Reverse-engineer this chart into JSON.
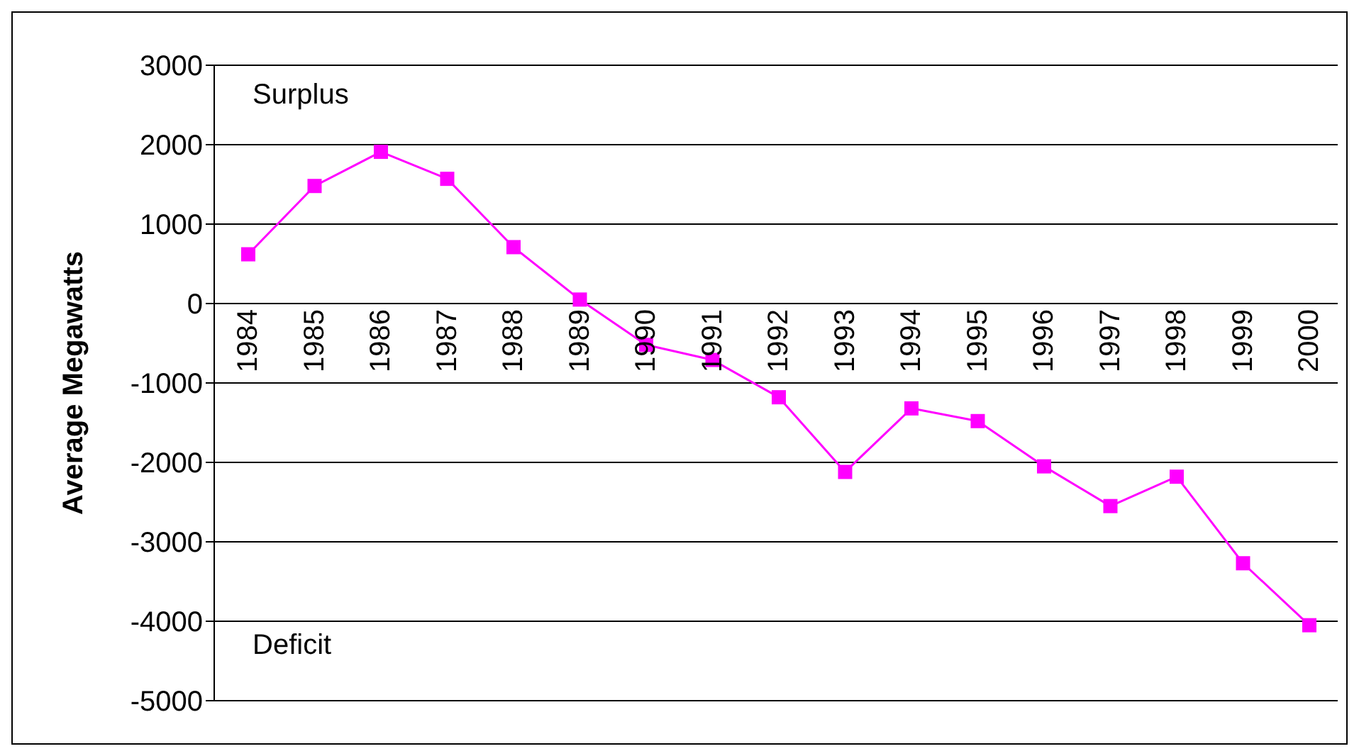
{
  "chart_data": {
    "type": "line",
    "ylabel": "Average Megawatts",
    "categories": [
      "1984",
      "1985",
      "1986",
      "1987",
      "1988",
      "1989",
      "1990",
      "1991",
      "1992",
      "1993",
      "1994",
      "1995",
      "1996",
      "1997",
      "1998",
      "1999",
      "2000"
    ],
    "series": [
      {
        "color": "#ff00ff",
        "values": [
          620,
          1480,
          1910,
          1570,
          710,
          50,
          -520,
          -710,
          -1180,
          -2120,
          -1320,
          -1480,
          -2050,
          -2550,
          -2180,
          -3270,
          -4050
        ]
      }
    ],
    "ylim": [
      -5000,
      3000
    ],
    "yticks": [
      -5000,
      -4000,
      -3000,
      -2000,
      -1000,
      0,
      1000,
      2000,
      3000
    ],
    "grid": "y",
    "marker": "square",
    "line_style": "solid",
    "legend": false,
    "annotations": [
      "Surplus",
      "Deficit"
    ]
  }
}
